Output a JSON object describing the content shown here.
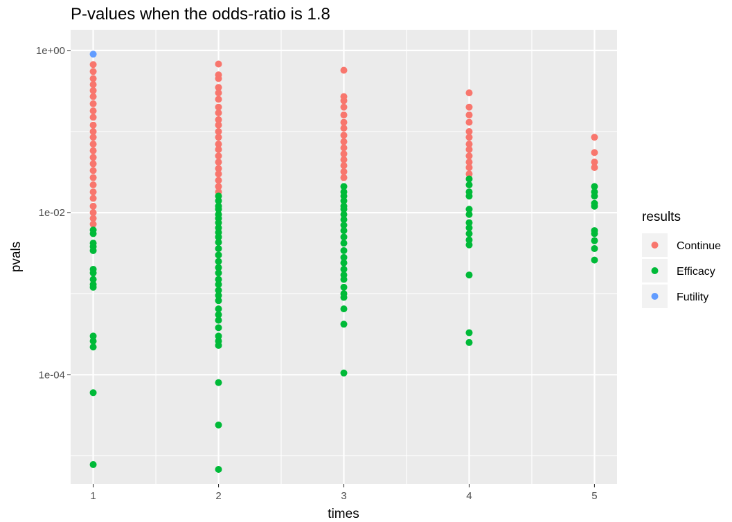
{
  "chart_data": {
    "type": "scatter",
    "title": "P-values when the odds-ratio is 1.8",
    "xlabel": "times",
    "ylabel": "pvals",
    "x_ticks": [
      "1",
      "2",
      "3",
      "4",
      "5"
    ],
    "y_scale": "log10",
    "y_ticks": [
      {
        "value": 1,
        "label": "1e+00"
      },
      {
        "value": 0.01,
        "label": "1e-02"
      },
      {
        "value": 0.0001,
        "label": "1e-04"
      }
    ],
    "xlim": [
      0.82,
      5.18
    ],
    "ylim": [
      4.5e-06,
      1.8
    ],
    "grid": true,
    "legend": {
      "title": "results",
      "placement": "right",
      "entries": [
        {
          "name": "Continue",
          "color": "#F8766D"
        },
        {
          "name": "Efficacy",
          "color": "#00BA38"
        },
        {
          "name": "Futility",
          "color": "#619CFF"
        }
      ]
    },
    "series": [
      {
        "name": "Continue",
        "color": "#F8766D",
        "points": [
          {
            "x": 1,
            "y": 0.67
          },
          {
            "x": 1,
            "y": 0.55
          },
          {
            "x": 1,
            "y": 0.45
          },
          {
            "x": 1,
            "y": 0.38
          },
          {
            "x": 1,
            "y": 0.32
          },
          {
            "x": 1,
            "y": 0.27
          },
          {
            "x": 1,
            "y": 0.22
          },
          {
            "x": 1,
            "y": 0.18
          },
          {
            "x": 1,
            "y": 0.15
          },
          {
            "x": 1,
            "y": 0.12
          },
          {
            "x": 1,
            "y": 0.1
          },
          {
            "x": 1,
            "y": 0.085
          },
          {
            "x": 1,
            "y": 0.07
          },
          {
            "x": 1,
            "y": 0.058
          },
          {
            "x": 1,
            "y": 0.048
          },
          {
            "x": 1,
            "y": 0.04
          },
          {
            "x": 1,
            "y": 0.033
          },
          {
            "x": 1,
            "y": 0.027
          },
          {
            "x": 1,
            "y": 0.022
          },
          {
            "x": 1,
            "y": 0.018
          },
          {
            "x": 1,
            "y": 0.015
          },
          {
            "x": 1,
            "y": 0.012
          },
          {
            "x": 1,
            "y": 0.01
          },
          {
            "x": 1,
            "y": 0.0085
          },
          {
            "x": 1,
            "y": 0.0072
          },
          {
            "x": 2,
            "y": 0.68
          },
          {
            "x": 2,
            "y": 0.5
          },
          {
            "x": 2,
            "y": 0.45
          },
          {
            "x": 2,
            "y": 0.35
          },
          {
            "x": 2,
            "y": 0.3
          },
          {
            "x": 2,
            "y": 0.25
          },
          {
            "x": 2,
            "y": 0.2
          },
          {
            "x": 2,
            "y": 0.17
          },
          {
            "x": 2,
            "y": 0.14
          },
          {
            "x": 2,
            "y": 0.12
          },
          {
            "x": 2,
            "y": 0.1
          },
          {
            "x": 2,
            "y": 0.085
          },
          {
            "x": 2,
            "y": 0.07
          },
          {
            "x": 2,
            "y": 0.06
          },
          {
            "x": 2,
            "y": 0.05
          },
          {
            "x": 2,
            "y": 0.042
          },
          {
            "x": 2,
            "y": 0.035
          },
          {
            "x": 2,
            "y": 0.03
          },
          {
            "x": 2,
            "y": 0.025
          },
          {
            "x": 2,
            "y": 0.021
          },
          {
            "x": 2,
            "y": 0.018
          },
          {
            "x": 3,
            "y": 0.57
          },
          {
            "x": 3,
            "y": 0.27
          },
          {
            "x": 3,
            "y": 0.24
          },
          {
            "x": 3,
            "y": 0.2
          },
          {
            "x": 3,
            "y": 0.16
          },
          {
            "x": 3,
            "y": 0.13
          },
          {
            "x": 3,
            "y": 0.11
          },
          {
            "x": 3,
            "y": 0.09
          },
          {
            "x": 3,
            "y": 0.075
          },
          {
            "x": 3,
            "y": 0.063
          },
          {
            "x": 3,
            "y": 0.053
          },
          {
            "x": 3,
            "y": 0.045
          },
          {
            "x": 3,
            "y": 0.038
          },
          {
            "x": 3,
            "y": 0.032
          },
          {
            "x": 3,
            "y": 0.027
          },
          {
            "x": 4,
            "y": 0.3
          },
          {
            "x": 4,
            "y": 0.2
          },
          {
            "x": 4,
            "y": 0.16
          },
          {
            "x": 4,
            "y": 0.13
          },
          {
            "x": 4,
            "y": 0.1
          },
          {
            "x": 4,
            "y": 0.085
          },
          {
            "x": 4,
            "y": 0.07
          },
          {
            "x": 4,
            "y": 0.06
          },
          {
            "x": 4,
            "y": 0.05
          },
          {
            "x": 4,
            "y": 0.042
          },
          {
            "x": 4,
            "y": 0.036
          },
          {
            "x": 4,
            "y": 0.03
          },
          {
            "x": 5,
            "y": 0.085
          },
          {
            "x": 5,
            "y": 0.055
          },
          {
            "x": 5,
            "y": 0.042
          },
          {
            "x": 5,
            "y": 0.036
          }
        ]
      },
      {
        "name": "Efficacy",
        "color": "#00BA38",
        "points": [
          {
            "x": 1,
            "y": 0.0061
          },
          {
            "x": 1,
            "y": 0.0055
          },
          {
            "x": 1,
            "y": 0.0042
          },
          {
            "x": 1,
            "y": 0.0038
          },
          {
            "x": 1,
            "y": 0.0034
          },
          {
            "x": 1,
            "y": 0.002
          },
          {
            "x": 1,
            "y": 0.0018
          },
          {
            "x": 1,
            "y": 0.0015
          },
          {
            "x": 1,
            "y": 0.0013
          },
          {
            "x": 1,
            "y": 0.0012
          },
          {
            "x": 1,
            "y": 0.0003
          },
          {
            "x": 1,
            "y": 0.00026
          },
          {
            "x": 1,
            "y": 0.00022
          },
          {
            "x": 1,
            "y": 6e-05
          },
          {
            "x": 1,
            "y": 7.8e-06
          },
          {
            "x": 2,
            "y": 0.016
          },
          {
            "x": 2,
            "y": 0.014
          },
          {
            "x": 2,
            "y": 0.012
          },
          {
            "x": 2,
            "y": 0.011
          },
          {
            "x": 2,
            "y": 0.0095
          },
          {
            "x": 2,
            "y": 0.0085
          },
          {
            "x": 2,
            "y": 0.0075
          },
          {
            "x": 2,
            "y": 0.0065
          },
          {
            "x": 2,
            "y": 0.0057
          },
          {
            "x": 2,
            "y": 0.005
          },
          {
            "x": 2,
            "y": 0.0043
          },
          {
            "x": 2,
            "y": 0.0036
          },
          {
            "x": 2,
            "y": 0.003
          },
          {
            "x": 2,
            "y": 0.0025
          },
          {
            "x": 2,
            "y": 0.0021
          },
          {
            "x": 2,
            "y": 0.0018
          },
          {
            "x": 2,
            "y": 0.0015
          },
          {
            "x": 2,
            "y": 0.0013
          },
          {
            "x": 2,
            "y": 0.0011
          },
          {
            "x": 2,
            "y": 0.00095
          },
          {
            "x": 2,
            "y": 0.00082
          },
          {
            "x": 2,
            "y": 0.00065
          },
          {
            "x": 2,
            "y": 0.00055
          },
          {
            "x": 2,
            "y": 0.00047
          },
          {
            "x": 2,
            "y": 0.00038
          },
          {
            "x": 2,
            "y": 0.0003
          },
          {
            "x": 2,
            "y": 0.00026
          },
          {
            "x": 2,
            "y": 0.00023
          },
          {
            "x": 2,
            "y": 8e-05
          },
          {
            "x": 2,
            "y": 2.4e-05
          },
          {
            "x": 2,
            "y": 6.8e-06
          },
          {
            "x": 3,
            "y": 0.021
          },
          {
            "x": 3,
            "y": 0.018
          },
          {
            "x": 3,
            "y": 0.016
          },
          {
            "x": 3,
            "y": 0.014
          },
          {
            "x": 3,
            "y": 0.012
          },
          {
            "x": 3,
            "y": 0.011
          },
          {
            "x": 3,
            "y": 0.0095
          },
          {
            "x": 3,
            "y": 0.0082
          },
          {
            "x": 3,
            "y": 0.007
          },
          {
            "x": 3,
            "y": 0.006
          },
          {
            "x": 3,
            "y": 0.005
          },
          {
            "x": 3,
            "y": 0.0042
          },
          {
            "x": 3,
            "y": 0.0034
          },
          {
            "x": 3,
            "y": 0.0028
          },
          {
            "x": 3,
            "y": 0.0024
          },
          {
            "x": 3,
            "y": 0.002
          },
          {
            "x": 3,
            "y": 0.0017
          },
          {
            "x": 3,
            "y": 0.0015
          },
          {
            "x": 3,
            "y": 0.0012
          },
          {
            "x": 3,
            "y": 0.001
          },
          {
            "x": 3,
            "y": 0.0009
          },
          {
            "x": 3,
            "y": 0.00065
          },
          {
            "x": 3,
            "y": 0.00042
          },
          {
            "x": 3,
            "y": 0.000105
          },
          {
            "x": 4,
            "y": 0.026
          },
          {
            "x": 4,
            "y": 0.022
          },
          {
            "x": 4,
            "y": 0.018
          },
          {
            "x": 4,
            "y": 0.016
          },
          {
            "x": 4,
            "y": 0.011
          },
          {
            "x": 4,
            "y": 0.0095
          },
          {
            "x": 4,
            "y": 0.0075
          },
          {
            "x": 4,
            "y": 0.0065
          },
          {
            "x": 4,
            "y": 0.0055
          },
          {
            "x": 4,
            "y": 0.0046
          },
          {
            "x": 4,
            "y": 0.004
          },
          {
            "x": 4,
            "y": 0.0017
          },
          {
            "x": 4,
            "y": 0.00033
          },
          {
            "x": 4,
            "y": 0.00025
          },
          {
            "x": 5,
            "y": 0.021
          },
          {
            "x": 5,
            "y": 0.018
          },
          {
            "x": 5,
            "y": 0.016
          },
          {
            "x": 5,
            "y": 0.013
          },
          {
            "x": 5,
            "y": 0.012
          },
          {
            "x": 5,
            "y": 0.006
          },
          {
            "x": 5,
            "y": 0.0055
          },
          {
            "x": 5,
            "y": 0.0045
          },
          {
            "x": 5,
            "y": 0.0036
          },
          {
            "x": 5,
            "y": 0.0026
          }
        ]
      },
      {
        "name": "Futility",
        "color": "#619CFF",
        "points": [
          {
            "x": 1,
            "y": 0.9
          }
        ]
      }
    ]
  }
}
